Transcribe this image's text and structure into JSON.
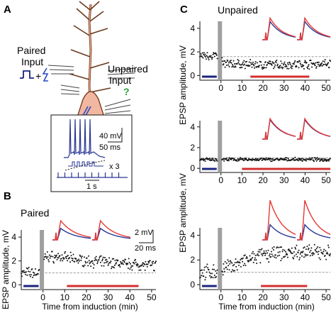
{
  "panels": {
    "A": {
      "label": "A",
      "paired_input": [
        "Paired",
        "Input"
      ],
      "unpaired_input": [
        "Unpaired",
        "Input"
      ],
      "plus": "+",
      "question": "?",
      "inset": {
        "scale_mv": "40 mV",
        "scale_ms": "50 ms",
        "times": "x 3",
        "scale_s": "1 s"
      }
    },
    "B": {
      "label": "B",
      "title": "Paired",
      "scale_mv": "2 mV",
      "scale_ms": "20 ms"
    },
    "C": {
      "label": "C",
      "title": "Unpaired"
    }
  },
  "axes": {
    "ylabel": "EPSP amplitude, mV",
    "xlabel": "Time from induction (min)"
  },
  "colors": {
    "baseline_bar": "#1a237e",
    "post_bar": "#d32f2f",
    "trace_pre": "#283593",
    "trace_post": "#e53935",
    "induction": "#a0a0a0",
    "dots": "#111111"
  },
  "chart_data": [
    {
      "id": "B",
      "type": "scatter",
      "title": "Paired",
      "xlabel": "Time from induction (min)",
      "ylabel": "EPSP amplitude, mV",
      "xlim": [
        -10,
        52
      ],
      "ylim": [
        -0.4,
        4.6
      ],
      "xticks": [
        0,
        10,
        20,
        30,
        40,
        50
      ],
      "yticks": [
        0,
        2,
        4
      ],
      "baseline": 1,
      "induction": [
        -1.5,
        0
      ],
      "bars": {
        "pre": [
          -9,
          -2
        ],
        "post": [
          11,
          44
        ]
      },
      "profile": [
        [
          -10,
          1.0
        ],
        [
          -1,
          1.0
        ],
        [
          1,
          2.4
        ],
        [
          8,
          2.3
        ],
        [
          20,
          2.0
        ],
        [
          35,
          1.8
        ],
        [
          44,
          1.7
        ],
        [
          52,
          1.6
        ]
      ],
      "noise": 0.55,
      "traces": [
        {
          "name": "pre",
          "color": "#283593",
          "amp": 0.9
        },
        {
          "name": "post",
          "color": "#e53935",
          "amp": 1.5
        }
      ]
    },
    {
      "id": "C1",
      "type": "scatter",
      "xlim": [
        -10,
        52
      ],
      "ylim": [
        -0.4,
        4.6
      ],
      "xticks": [
        0,
        10,
        20,
        30,
        40,
        50
      ],
      "yticks": [
        0,
        2,
        4
      ],
      "baseline": 1.6,
      "induction": [
        -1.5,
        0
      ],
      "bars": {
        "pre": [
          -9,
          -2
        ],
        "post": [
          14,
          42
        ]
      },
      "profile": [
        [
          -10,
          1.7
        ],
        [
          -1,
          1.7
        ],
        [
          1,
          1.0
        ],
        [
          20,
          0.9
        ],
        [
          52,
          1.0
        ]
      ],
      "noise": 0.45,
      "traces": [
        {
          "name": "pre",
          "color": "#283593",
          "amp": 1.3
        },
        {
          "name": "post",
          "color": "#e53935",
          "amp": 1.55
        }
      ]
    },
    {
      "id": "C2",
      "type": "scatter",
      "xlim": [
        -10,
        52
      ],
      "ylim": [
        -0.4,
        4.6
      ],
      "xticks": [
        0,
        10,
        20,
        30,
        40,
        50
      ],
      "yticks": [
        0,
        2,
        4
      ],
      "baseline": 1,
      "induction": [
        -1.5,
        0
      ],
      "bars": {
        "pre": [
          -9,
          -2
        ],
        "post": [
          10,
          52
        ]
      },
      "profile": [
        [
          -10,
          0.85
        ],
        [
          52,
          0.85
        ]
      ],
      "noise": 0.2,
      "traces": [
        {
          "name": "pre",
          "color": "#283593",
          "amp": 1.0
        },
        {
          "name": "post",
          "color": "#e53935",
          "amp": 1.05
        }
      ]
    },
    {
      "id": "C3",
      "type": "scatter",
      "xlim": [
        -10,
        52
      ],
      "ylim": [
        -0.4,
        4.6
      ],
      "xticks": [
        0,
        10,
        20,
        30,
        40,
        50
      ],
      "yticks": [
        0,
        2,
        4
      ],
      "baseline": 1,
      "induction": [
        -1.5,
        0
      ],
      "bars": {
        "pre": [
          -9,
          -2
        ],
        "post": [
          19,
          41
        ]
      },
      "profile": [
        [
          -10,
          1.0
        ],
        [
          -1,
          1.0
        ],
        [
          1,
          1.3
        ],
        [
          10,
          1.8
        ],
        [
          20,
          2.4
        ],
        [
          35,
          2.6
        ],
        [
          52,
          2.6
        ]
      ],
      "noise": 0.7,
      "traces": [
        {
          "name": "pre",
          "color": "#283593",
          "amp": 1.0
        },
        {
          "name": "post",
          "color": "#e53935",
          "amp": 2.6
        }
      ]
    }
  ]
}
